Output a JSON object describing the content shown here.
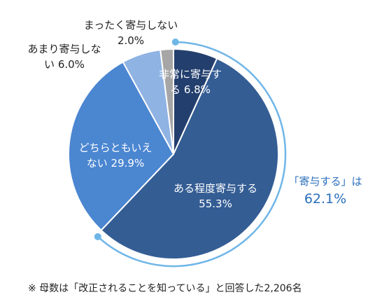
{
  "chart_data": {
    "type": "pie",
    "slices": [
      {
        "label_lines": [
          "非常に寄与す",
          "る 6.8%"
        ],
        "category": "非常に寄与する",
        "value": 6.8,
        "color": "#233f6e",
        "label_pos": "inside"
      },
      {
        "label_lines": [
          "ある程度寄与する",
          "55.3%"
        ],
        "category": "ある程度寄与する",
        "value": 55.3,
        "color": "#345d94",
        "label_pos": "inside"
      },
      {
        "label_lines": [
          "どちらともいえ",
          "ない 29.9%"
        ],
        "category": "どちらともいえない",
        "value": 29.9,
        "color": "#4b86d1",
        "label_pos": "inside"
      },
      {
        "label_lines": [
          "あまり寄与しな",
          "い 6.0%"
        ],
        "category": "あまり寄与しない",
        "value": 6.0,
        "color": "#8fb3e3",
        "label_pos": "outside"
      },
      {
        "label_lines": [
          "まったく寄与しない",
          "2.0%"
        ],
        "category": "まったく寄与しない",
        "value": 2.0,
        "color": "#a6a6a6",
        "label_pos": "outside"
      }
    ],
    "callout": {
      "line1": "「寄与する」は",
      "line2": "62.1%",
      "color": "#6fb6e8"
    },
    "footnote": "※ 母数は「改正されることを知っている」と回答した2,206名"
  }
}
